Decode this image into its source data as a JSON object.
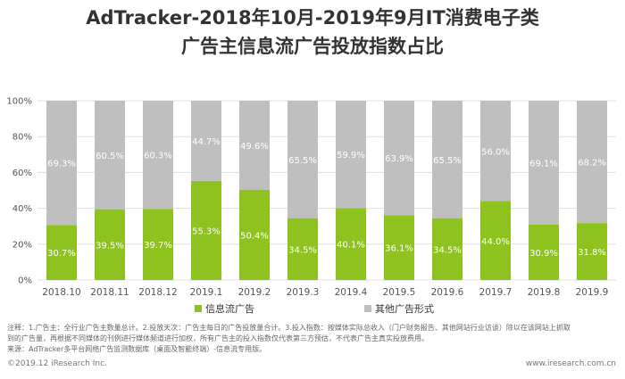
{
  "title_line1": "AdTracker-2018年10月-2019年9月IT消费电子类",
  "title_line2": "广告主信息流广告投放指数占比",
  "colors": {
    "info_flow": "#8DC21F",
    "other": "#BFBFBF",
    "axis_text": "#555555",
    "grid": "#E0E0E0"
  },
  "chart_data": {
    "type": "bar",
    "stacked": true,
    "categories": [
      "2018.10",
      "2018.11",
      "2018.12",
      "2019.1",
      "2019.2",
      "2019.3",
      "2019.4",
      "2019.5",
      "2019.6",
      "2019.7",
      "2019.8",
      "2019.9"
    ],
    "series": [
      {
        "name": "信息流广告",
        "values": [
          30.7,
          39.5,
          39.7,
          55.3,
          50.4,
          34.5,
          40.1,
          36.1,
          34.5,
          44.0,
          30.9,
          31.8
        ],
        "labels": [
          "30.7%",
          "39.5%",
          "39.7%",
          "55.3%",
          "50.4%",
          "34.5%",
          "40.1%",
          "36.1%",
          "34.5%",
          "44.0%",
          "30.9%",
          "31.8%"
        ]
      },
      {
        "name": "其他广告形式",
        "values": [
          69.3,
          60.5,
          60.3,
          44.7,
          49.6,
          65.5,
          59.9,
          63.9,
          65.5,
          56.0,
          69.1,
          68.2
        ],
        "labels": [
          "69.3%",
          "60.5%",
          "60.3%",
          "44.7%",
          "49.6%",
          "65.5%",
          "59.9%",
          "63.9%",
          "65.5%",
          "56.0%",
          "69.1%",
          "68.2%"
        ]
      }
    ],
    "yticks": [
      "0%",
      "20%",
      "40%",
      "60%",
      "80%",
      "100%"
    ],
    "ylim": [
      0,
      100
    ],
    "legend_position": "bottom"
  },
  "notes": {
    "line1": "注释：1.广告主：全行业广告主数量总计。2.投放天次：广告主每日的广告投放量合计。3.投入指数：按媒体实际总收入（门户财务报告、其他网站行业访谈）除以在该网站上抓取",
    "line2": "到的广告量，再根据不同媒体的刊例进行媒体频道进行加权，所有广告主的投入指数仅代表第三方预估，不代表广告主真实投放费用。",
    "line3": "来源：AdTracker多平台网络广告监测数据库（桌面及智能终端）-信息流专用版。"
  },
  "footer": {
    "copyright": "©2019.12 iResearch Inc.",
    "website": "www.iresearch.com.cn"
  }
}
